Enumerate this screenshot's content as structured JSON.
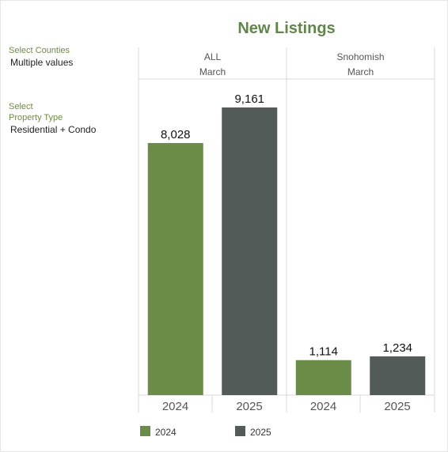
{
  "filters": {
    "counties": {
      "label": "Select Counties",
      "value": "Multiple values"
    },
    "property_type": {
      "label_line1": "Select",
      "label_line2": "Property Type",
      "value": "Residential + Condo"
    }
  },
  "colors": {
    "y2024": "#6b8c46",
    "y2025": "#525b58"
  },
  "chart_data": {
    "type": "bar",
    "title": "New Listings",
    "categories": [
      "2024",
      "2025"
    ],
    "panels": [
      {
        "region": "ALL",
        "month": "March",
        "values": [
          8028,
          9161
        ],
        "labels": [
          "8,028",
          "9,161"
        ]
      },
      {
        "region": "Snohomish",
        "month": "March",
        "values": [
          1114,
          1234
        ],
        "labels": [
          "1,114",
          "1,234"
        ]
      }
    ],
    "series": [
      {
        "name": "2024"
      },
      {
        "name": "2025"
      }
    ],
    "ylim": [
      0,
      9161
    ],
    "grid": false,
    "legend_position": "bottom-left"
  }
}
